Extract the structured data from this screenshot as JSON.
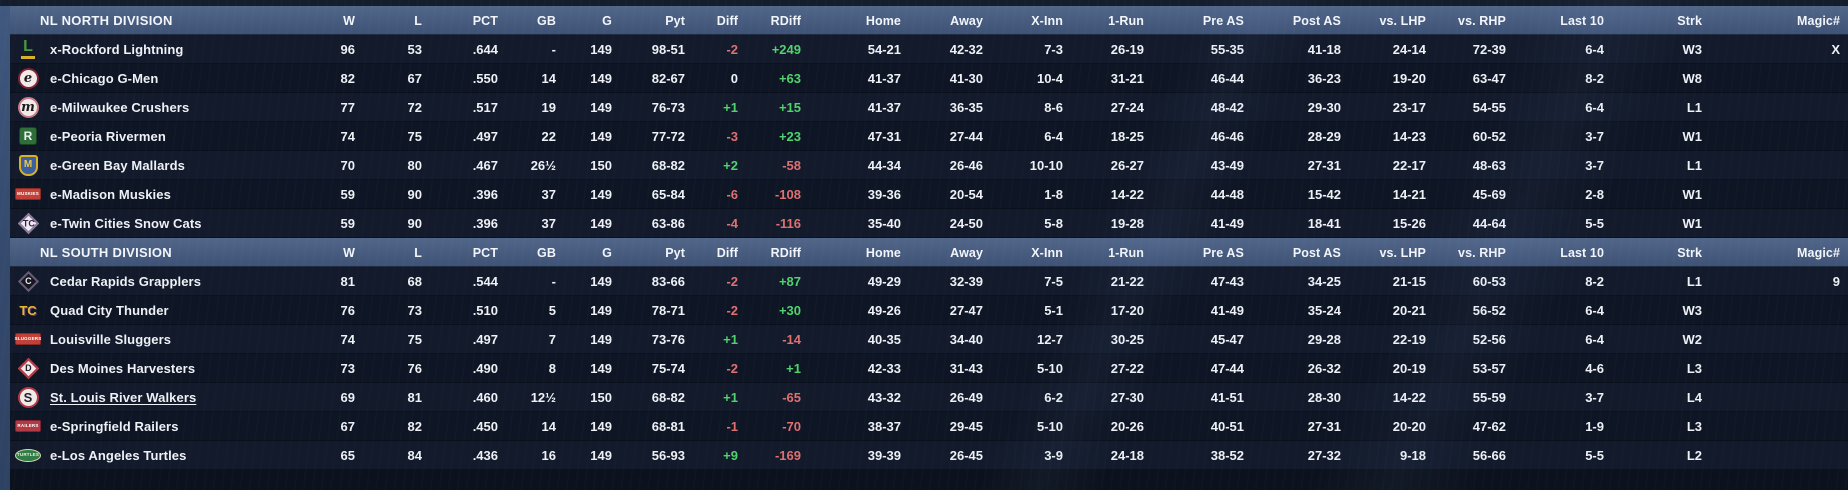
{
  "colors": {
    "screen_bg": "#0c121d",
    "header_bar_top": "#516689",
    "header_bar_bottom": "#3e5276",
    "row_odd": "#121a2b",
    "row_even": "#0e1524",
    "text": "#eef1f6",
    "positive": "#4fd36c",
    "negative": "#e07070",
    "left_strip": "#364c70"
  },
  "columns": [
    "W",
    "L",
    "PCT",
    "GB",
    "G",
    "Pyt",
    "Diff",
    "RDiff",
    "Home",
    "Away",
    "X-Inn",
    "1-Run",
    "Pre AS",
    "Post AS",
    "vs. LHP",
    "vs. RHP",
    "Last 10",
    "Strk",
    "Magic#"
  ],
  "divisions": [
    {
      "name": "NL NORTH DIVISION",
      "teams": [
        {
          "name": "x-Rockford Lightning",
          "underline": false,
          "logo": {
            "shape": "glyph",
            "text": "L",
            "fg": "#4a9a3a",
            "accent": "#d8b02a"
          },
          "cells": [
            "96",
            "53",
            ".644",
            "-",
            "149",
            "98-51",
            "-2",
            "+249",
            "54-21",
            "42-32",
            "7-3",
            "26-19",
            "55-35",
            "41-18",
            "24-14",
            "72-39",
            "6-4",
            "W3",
            "X"
          ]
        },
        {
          "name": "e-Chicago G-Men",
          "underline": false,
          "logo": {
            "shape": "circle",
            "bg": "#f2e9e9",
            "border": "#7c2433",
            "text": "e",
            "fg": "#1a1a1a",
            "italic": true
          },
          "cells": [
            "82",
            "67",
            ".550",
            "14",
            "149",
            "82-67",
            "0",
            "+63",
            "41-37",
            "41-30",
            "10-4",
            "31-21",
            "46-44",
            "36-23",
            "19-20",
            "63-47",
            "8-2",
            "W8",
            ""
          ]
        },
        {
          "name": "e-Milwaukee Crushers",
          "underline": false,
          "logo": {
            "shape": "circle",
            "bg": "#f2e9e9",
            "border": "#c87888",
            "text": "m",
            "fg": "#1a1a1a",
            "italic": true
          },
          "cells": [
            "77",
            "72",
            ".517",
            "19",
            "149",
            "76-73",
            "+1",
            "+15",
            "41-37",
            "36-35",
            "8-6",
            "27-24",
            "48-42",
            "29-30",
            "23-17",
            "54-55",
            "6-4",
            "L1",
            ""
          ]
        },
        {
          "name": "e-Peoria Rivermen",
          "underline": false,
          "logo": {
            "shape": "square",
            "bg": "#2f6d3a",
            "text": "R",
            "fg": "#eaf2ea"
          },
          "cells": [
            "74",
            "75",
            ".497",
            "22",
            "149",
            "77-72",
            "-3",
            "+23",
            "47-31",
            "27-44",
            "6-4",
            "18-25",
            "46-46",
            "28-29",
            "14-23",
            "60-52",
            "3-7",
            "W1",
            ""
          ]
        },
        {
          "name": "e-Green Bay Mallards",
          "underline": false,
          "logo": {
            "shape": "shield",
            "bg": "#3c5fa0",
            "border": "#d8b02a",
            "text": "M",
            "fg": "#eec844"
          },
          "cells": [
            "70",
            "80",
            ".467",
            "26½",
            "150",
            "68-82",
            "+2",
            "-58",
            "44-34",
            "26-46",
            "10-10",
            "26-27",
            "43-49",
            "27-31",
            "22-17",
            "48-63",
            "3-7",
            "L1",
            ""
          ]
        },
        {
          "name": "e-Madison Muskies",
          "underline": false,
          "logo": {
            "shape": "banner",
            "bg": "#c24038",
            "border": "#8a2a24",
            "text": "MUSKIES",
            "fg": "#ffffff"
          },
          "cells": [
            "59",
            "90",
            ".396",
            "37",
            "149",
            "65-84",
            "-6",
            "-108",
            "39-36",
            "20-54",
            "1-8",
            "14-22",
            "44-48",
            "15-42",
            "14-21",
            "45-69",
            "2-8",
            "W1",
            ""
          ]
        },
        {
          "name": "e-Twin Cities Snow Cats",
          "underline": false,
          "logo": {
            "shape": "diamond",
            "bg": "#efe9f2",
            "border": "#8a7898",
            "text": "TC",
            "fg": "#2e2440"
          },
          "cells": [
            "59",
            "90",
            ".396",
            "37",
            "149",
            "63-86",
            "-4",
            "-116",
            "35-40",
            "24-50",
            "5-8",
            "19-28",
            "41-49",
            "18-41",
            "15-26",
            "44-64",
            "5-5",
            "W1",
            ""
          ]
        }
      ]
    },
    {
      "name": "NL SOUTH DIVISION",
      "teams": [
        {
          "name": "Cedar Rapids Grapplers",
          "underline": false,
          "logo": {
            "shape": "diamond",
            "bg": "#17171f",
            "border": "#6a5a7a",
            "text": "C",
            "fg": "#e8e8f0"
          },
          "cells": [
            "81",
            "68",
            ".544",
            "-",
            "149",
            "83-66",
            "-2",
            "+87",
            "49-29",
            "32-39",
            "7-5",
            "21-22",
            "47-43",
            "34-25",
            "21-15",
            "60-53",
            "8-2",
            "L1",
            "9"
          ]
        },
        {
          "name": "Quad City Thunder",
          "underline": false,
          "logo": {
            "shape": "letters",
            "text": "TC",
            "fg": "#e8b832",
            "accent": "#5a3a7a"
          },
          "cells": [
            "76",
            "73",
            ".510",
            "5",
            "149",
            "78-71",
            "-2",
            "+30",
            "49-26",
            "27-47",
            "5-1",
            "17-20",
            "41-49",
            "35-24",
            "20-21",
            "56-52",
            "6-4",
            "W3",
            ""
          ]
        },
        {
          "name": "Louisville Sluggers",
          "underline": false,
          "logo": {
            "shape": "banner",
            "bg": "#c24038",
            "border": "#8a2a24",
            "text": "SLUGGERS",
            "fg": "#ffffff"
          },
          "cells": [
            "74",
            "75",
            ".497",
            "7",
            "149",
            "73-76",
            "+1",
            "-14",
            "40-35",
            "34-40",
            "12-7",
            "30-25",
            "45-47",
            "29-28",
            "22-19",
            "52-56",
            "6-4",
            "W2",
            ""
          ]
        },
        {
          "name": "Des Moines Harvesters",
          "underline": false,
          "logo": {
            "shape": "diamond",
            "bg": "#f2eaea",
            "border": "#b23a44",
            "text": "D",
            "fg": "#23232b"
          },
          "cells": [
            "73",
            "76",
            ".490",
            "8",
            "149",
            "75-74",
            "-2",
            "+1",
            "42-33",
            "31-43",
            "5-10",
            "27-22",
            "47-44",
            "26-32",
            "20-19",
            "53-57",
            "4-6",
            "L3",
            ""
          ]
        },
        {
          "name": "St. Louis River Walkers",
          "underline": true,
          "logo": {
            "shape": "circle",
            "bg": "#f2eaea",
            "border": "#b23a44",
            "text": "S",
            "fg": "#23232b"
          },
          "cells": [
            "69",
            "81",
            ".460",
            "12½",
            "150",
            "68-82",
            "+1",
            "-65",
            "43-32",
            "26-49",
            "6-2",
            "27-30",
            "41-51",
            "28-30",
            "14-22",
            "55-59",
            "3-7",
            "L4",
            ""
          ]
        },
        {
          "name": "e-Springfield Railers",
          "underline": false,
          "logo": {
            "shape": "banner",
            "bg": "#b23a44",
            "border": "#7c2433",
            "text": "RAILERS",
            "fg": "#ffffff"
          },
          "cells": [
            "67",
            "82",
            ".450",
            "14",
            "149",
            "68-81",
            "-1",
            "-70",
            "38-37",
            "29-45",
            "5-10",
            "20-26",
            "40-51",
            "27-31",
            "20-20",
            "47-62",
            "1-9",
            "L3",
            ""
          ]
        },
        {
          "name": "e-Los Angeles Turtles",
          "underline": false,
          "logo": {
            "shape": "oval",
            "bg": "#2e7d46",
            "border": "#d8d8b0",
            "text": "TURTLES",
            "fg": "#eef0d8"
          },
          "cells": [
            "65",
            "84",
            ".436",
            "16",
            "149",
            "56-93",
            "+9",
            "-169",
            "39-39",
            "26-45",
            "3-9",
            "24-18",
            "38-52",
            "27-32",
            "9-18",
            "56-66",
            "5-5",
            "L2",
            ""
          ]
        }
      ]
    }
  ]
}
